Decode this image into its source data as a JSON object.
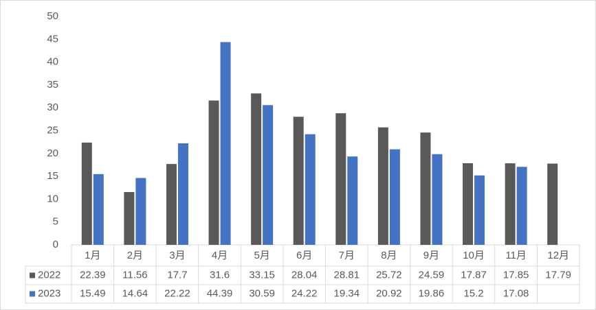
{
  "chart_data": {
    "type": "bar",
    "categories": [
      "1月",
      "2月",
      "3月",
      "4月",
      "5月",
      "6月",
      "7月",
      "8月",
      "9月",
      "10月",
      "11月",
      "12月"
    ],
    "series": [
      {
        "name": "2022",
        "color": "#595959",
        "values": [
          22.39,
          11.56,
          17.7,
          31.6,
          33.15,
          28.04,
          28.81,
          25.72,
          24.59,
          17.87,
          17.85,
          17.79
        ]
      },
      {
        "name": "2023",
        "color": "#4472c4",
        "values": [
          15.49,
          14.64,
          22.22,
          44.39,
          30.59,
          24.22,
          19.34,
          20.92,
          19.86,
          15.2,
          17.08,
          null
        ]
      }
    ],
    "ylim": [
      0,
      50
    ],
    "yticks": [
      0,
      5,
      10,
      15,
      20,
      25,
      30,
      35,
      40,
      45,
      50
    ],
    "data_table": true
  }
}
